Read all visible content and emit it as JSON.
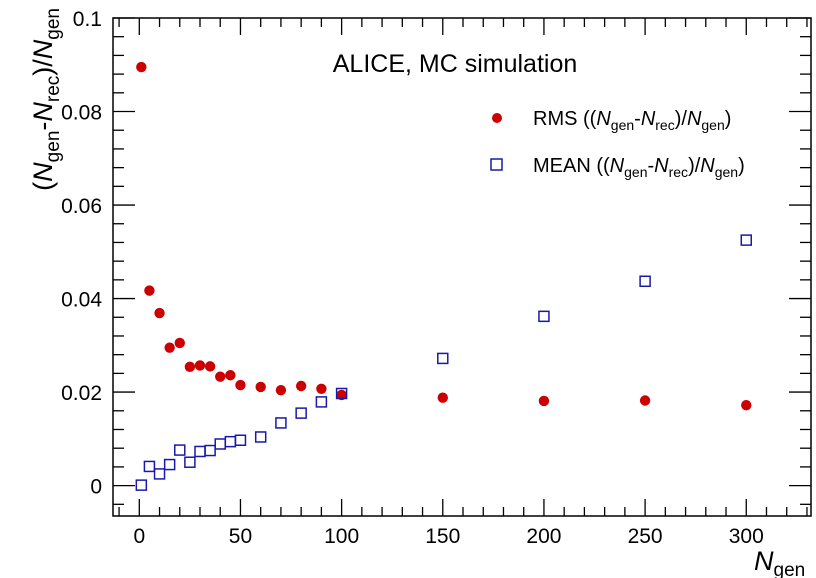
{
  "chart_data": {
    "type": "scatter",
    "annotation": "ALICE, MC simulation",
    "xlabel": {
      "base": "N",
      "sub": "gen"
    },
    "ylabel": {
      "open": "(",
      "n1": "N",
      "s1": "gen",
      "dash": "-",
      "n2": "N",
      "s2": "rec",
      "close": ")/",
      "n3": "N",
      "s3": "gen"
    },
    "xlim": [
      -13,
      332
    ],
    "ylim": [
      -0.0065,
      0.1
    ],
    "xticks": [
      0,
      50,
      100,
      150,
      200,
      250,
      300
    ],
    "yticks": [
      0,
      0.02,
      0.04,
      0.06,
      0.08,
      0.1
    ],
    "ytick_labels": [
      "0",
      "0.02",
      "0.04",
      "0.06",
      "0.08",
      "0.1"
    ],
    "legend_position": "top-right",
    "series": [
      {
        "name": "RMS",
        "legend": {
          "prefix": "RMS ((",
          "n1": "N",
          "s1": "gen",
          "dash": "-",
          "n2": "N",
          "s2": "rec",
          "mid": ")/",
          "n3": "N",
          "s3": "gen",
          "suffix": ")"
        },
        "marker": "filled-circle",
        "color": "#cc0000",
        "x": [
          1,
          5,
          10,
          15,
          20,
          25,
          30,
          35,
          40,
          45,
          50,
          60,
          70,
          80,
          90,
          100,
          150,
          200,
          250,
          300
        ],
        "y": [
          0.0895,
          0.0417,
          0.0369,
          0.0295,
          0.0305,
          0.0254,
          0.0257,
          0.0255,
          0.0233,
          0.0236,
          0.0215,
          0.0211,
          0.0204,
          0.0213,
          0.0207,
          0.0194,
          0.0188,
          0.0181,
          0.0182,
          0.0172
        ]
      },
      {
        "name": "MEAN",
        "legend": {
          "prefix": "MEAN ((",
          "n1": "N",
          "s1": "gen",
          "dash": "-",
          "n2": "N",
          "s2": "rec",
          "mid": ")/",
          "n3": "N",
          "s3": "gen",
          "suffix": ")"
        },
        "marker": "open-square",
        "color": "#1a1aaa",
        "x": [
          1,
          5,
          10,
          15,
          20,
          25,
          30,
          35,
          40,
          45,
          50,
          60,
          70,
          80,
          90,
          100,
          150,
          200,
          250,
          300
        ],
        "y": [
          0.0001,
          0.0041,
          0.0025,
          0.0045,
          0.0076,
          0.005,
          0.0073,
          0.0075,
          0.0089,
          0.0094,
          0.0097,
          0.0104,
          0.0134,
          0.0155,
          0.0179,
          0.0197,
          0.0272,
          0.0362,
          0.0437,
          0.0525
        ]
      }
    ]
  }
}
